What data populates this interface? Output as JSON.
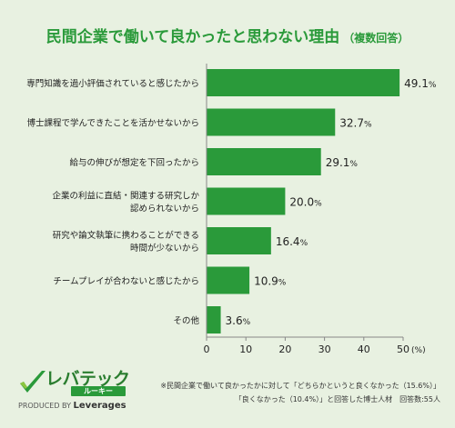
{
  "title": "民間企業で働いて良かったと思わない理由",
  "title_suffix": "（複数回答）",
  "chart_data": {
    "type": "bar",
    "orientation": "horizontal",
    "categories": [
      [
        "専門知識を過小評価されていると感じたから"
      ],
      [
        "博士課程で学んできたことを活かせないから"
      ],
      [
        "給与の伸びが想定を下回ったから"
      ],
      [
        "企業の利益に直結・関連する研究しか",
        "認められないから"
      ],
      [
        "研究や論文執筆に携わることができる",
        "時間が少ないから"
      ],
      [
        "チームプレイが合わないと感じたから"
      ],
      [
        "その他"
      ]
    ],
    "values": [
      49.1,
      32.7,
      29.1,
      20.0,
      16.4,
      10.9,
      3.6
    ],
    "value_labels": [
      "49.1",
      "32.7",
      "29.1",
      "20.0",
      "16.4",
      "10.9",
      "3.6"
    ],
    "value_unit": "%",
    "xlim": [
      0,
      50
    ],
    "xticks": [
      0,
      10,
      20,
      30,
      40,
      50
    ],
    "x_unit": "(%)",
    "bar_color": "#2a9a3a",
    "grid": false
  },
  "brand": {
    "name": "レバテック",
    "sub": "ルーキー",
    "produced_by": "PRODUCED BY",
    "company": "Leverages"
  },
  "note_line1": "※民間企業で働いて良かったかに対して「どちらかというと良くなかった（15.6%）」",
  "note_line2": "「良くなかった（10.4%）」と回答した博士人材　回答数:55人",
  "colors": {
    "background": "#e8f1e1",
    "accent": "#2a9a3a",
    "text": "#222222"
  }
}
